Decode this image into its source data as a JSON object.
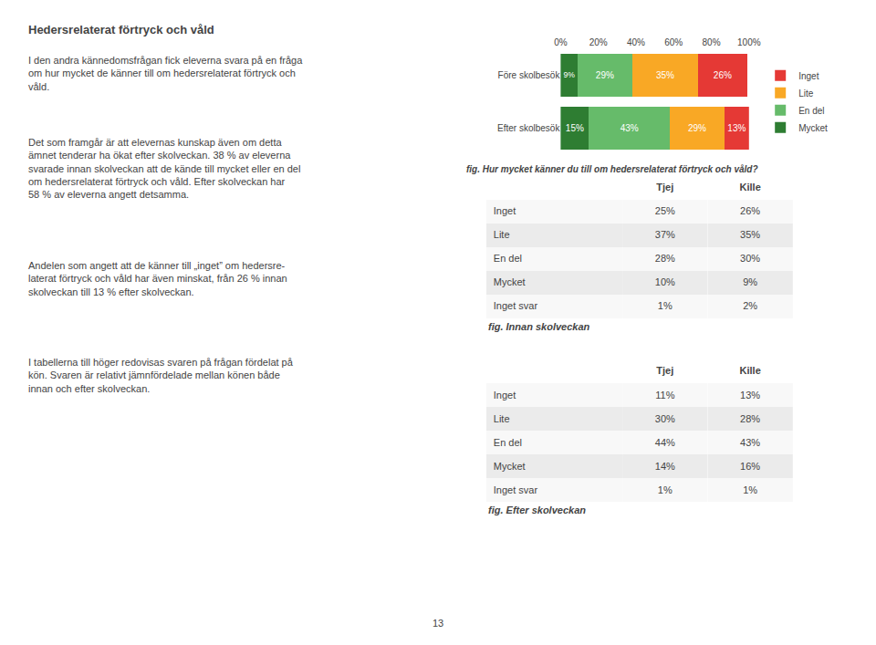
{
  "title": "Hedersrelaterat förtryck och våld",
  "annotations": [
    "I den andra kännedomsfrågan fick eleverna svara på en fråga\nom hur mycket de känner till om hedersrelaterat förtryck och\nvåld.",
    "Det som framgår är att elevernas kunskap även om detta\nämnet tenderar ha ökat efter skolveckan. 38 % av eleverna\nsvarade innan skolveckan att de kände till mycket eller en del\nom hedersrelaterat förtryck och våld. Efter skolveckan har\n58 % av eleverna angett detsamma.",
    "Andelen som angett att de känner till „inget” om hedersre-\nlaterat förtryck och våld har även minskat, från 26 % innan\nskolveckan till 13 % efter skolveckan.",
    "I tabellerna till höger redovisas svaren på frågan fördelat på\nkön. Svaren är relativt jämnfördelade mellan könen både\ninnan och efter skolveckan.",
    "13"
  ],
  "chart_data": [
    {
      "type": "bar",
      "orientation": "horizontal",
      "stacked": true,
      "title": "fig. Hur mycket känner du till om hedersrelaterat förtryck och våld?",
      "categories": [
        "Före skolbesök",
        "Efter skolbesök"
      ],
      "series": [
        {
          "name": "Mycket",
          "color": "#2e7d32",
          "values": [
            9,
            15
          ],
          "value_labels": [
            "9%",
            "15%"
          ]
        },
        {
          "name": "En del",
          "color": "#66bb6a",
          "values": [
            29,
            43
          ],
          "value_labels": [
            "29%",
            "43%"
          ]
        },
        {
          "name": "Lite",
          "color": "#f9a825",
          "values": [
            35,
            29
          ],
          "value_labels": [
            "35%",
            "29%"
          ]
        },
        {
          "name": "Inget",
          "color": "#e53935",
          "values": [
            26,
            13
          ],
          "value_labels": [
            "26%",
            "13%"
          ]
        }
      ],
      "xlim": [
        0,
        100
      ],
      "xticks": [
        {
          "value": 0,
          "label": "0%"
        },
        {
          "value": 20,
          "label": "20%"
        },
        {
          "value": 40,
          "label": "40%"
        },
        {
          "value": 60,
          "label": "60%"
        },
        {
          "value": 80,
          "label": "80%"
        },
        {
          "value": 100,
          "label": "100%"
        }
      ],
      "data_labels": true,
      "grid": false,
      "legend": "right"
    },
    {
      "type": "table",
      "title": "fig. Innan skolveckan",
      "categories": [
        "Inget",
        "Lite",
        "En del",
        "Mycket",
        "Inget svar"
      ],
      "series": [
        {
          "name": "Tjej",
          "values": [
            25,
            37,
            28,
            10,
            1
          ],
          "value_labels": [
            "25%",
            "37%",
            "28%",
            "10%",
            "1%"
          ]
        },
        {
          "name": "Kille",
          "values": [
            26,
            35,
            30,
            9,
            2
          ],
          "value_labels": [
            "26%",
            "35%",
            "30%",
            "9%",
            "2%"
          ]
        }
      ]
    },
    {
      "type": "table",
      "title": "fig. Efter skolveckan",
      "categories": [
        "Inget",
        "Lite",
        "En del",
        "Mycket",
        "Inget svar"
      ],
      "series": [
        {
          "name": "Tjej",
          "values": [
            11,
            30,
            44,
            14,
            1
          ],
          "value_labels": [
            "11%",
            "30%",
            "44%",
            "14%",
            "1%"
          ]
        },
        {
          "name": "Kille",
          "values": [
            13,
            28,
            43,
            16,
            1
          ],
          "value_labels": [
            "13%",
            "28%",
            "43%",
            "16%",
            "1%"
          ]
        }
      ]
    }
  ]
}
